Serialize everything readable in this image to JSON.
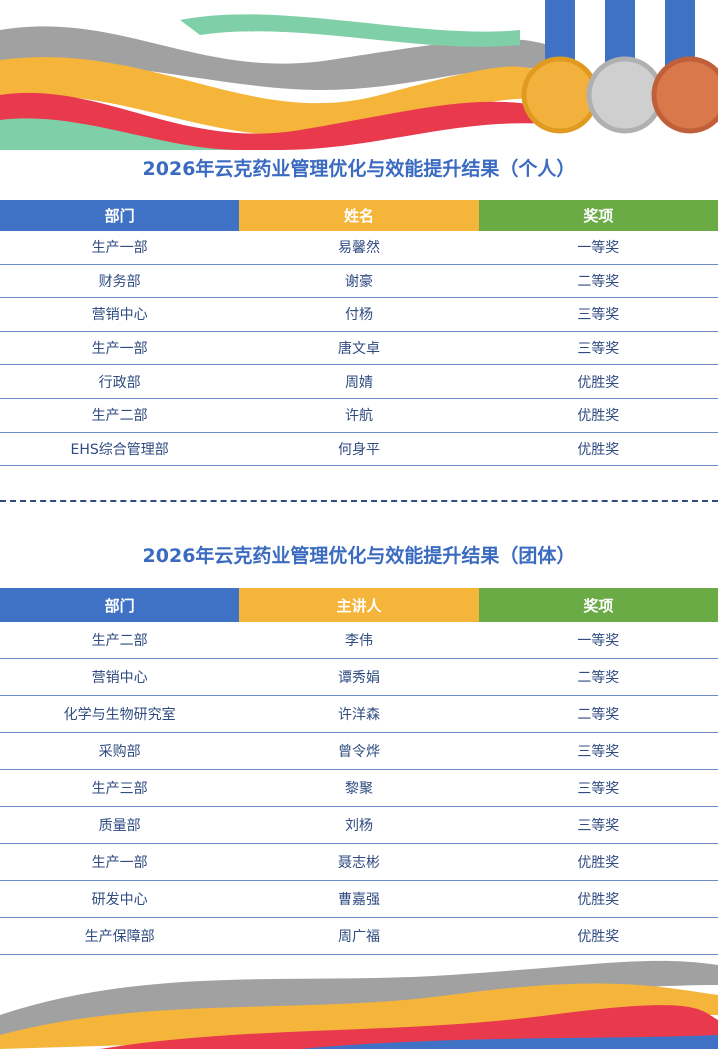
{
  "individual": {
    "title": "2026年云克药业管理优化与效能提升结果（个人）",
    "headers": [
      "部门",
      "姓名",
      "奖项"
    ],
    "rows": [
      [
        "生产一部",
        "易馨然",
        "一等奖"
      ],
      [
        "财务部",
        "谢豪",
        "二等奖"
      ],
      [
        "营销中心",
        "付杨",
        "三等奖"
      ],
      [
        "生产一部",
        "唐文卓",
        "三等奖"
      ],
      [
        "行政部",
        "周婧",
        "优胜奖"
      ],
      [
        "生产二部",
        "许航",
        "优胜奖"
      ],
      [
        "EHS综合管理部",
        "何身平",
        "优胜奖"
      ]
    ]
  },
  "team": {
    "title": "2026年云克药业管理优化与效能提升结果（团体）",
    "headers": [
      "部门",
      "主讲人",
      "奖项"
    ],
    "rows": [
      [
        "生产二部",
        "李伟",
        "一等奖"
      ],
      [
        "营销中心",
        "谭秀娟",
        "二等奖"
      ],
      [
        "化学与生物研究室",
        "许洋森",
        "二等奖"
      ],
      [
        "采购部",
        "曾令烨",
        "三等奖"
      ],
      [
        "生产三部",
        "黎聚",
        "三等奖"
      ],
      [
        "质量部",
        "刘杨",
        "三等奖"
      ],
      [
        "生产一部",
        "聂志彬",
        "优胜奖"
      ],
      [
        "研发中心",
        "曹嘉强",
        "优胜奖"
      ],
      [
        "生产保障部",
        "周广福",
        "优胜奖"
      ]
    ]
  }
}
